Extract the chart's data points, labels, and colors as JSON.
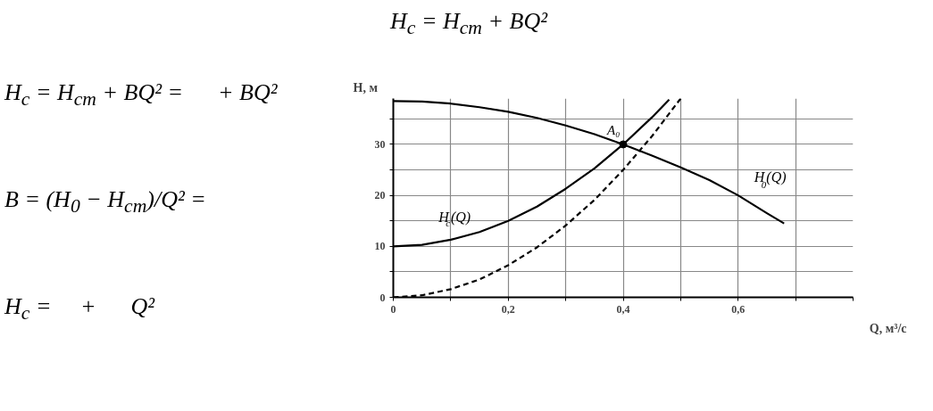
{
  "chart_data": {
    "type": "line",
    "xlabel": "Q, м³/с",
    "ylabel": "H, м",
    "xlim": [
      0,
      0.8
    ],
    "ylim": [
      0,
      39
    ],
    "xticks": [
      0,
      {
        "value": 0.1,
        "label": null
      },
      {
        "value": 0.2,
        "label": "0,2"
      },
      {
        "value": 0.3,
        "label": null
      },
      {
        "value": 0.4,
        "label": "0,4"
      },
      {
        "value": 0.5,
        "label": null
      },
      {
        "value": 0.6,
        "label": "0,6"
      },
      {
        "value": 0.7,
        "label": null
      },
      {
        "value": 0.8,
        "label": null
      }
    ],
    "yticks": [
      0,
      {
        "value": 5,
        "label": null
      },
      10,
      {
        "value": 15,
        "label": null
      },
      20,
      {
        "value": 25,
        "label": null
      },
      30,
      {
        "value": 35,
        "label": null
      }
    ],
    "grid": true,
    "marker": "none",
    "series": [
      {
        "name": "H$_{0}$(Q)",
        "color": "#000000",
        "x": [
          0,
          0.05,
          0.1,
          0.15,
          0.2,
          0.25,
          0.3,
          0.35,
          0.4,
          0.45,
          0.5,
          0.55,
          0.6,
          0.65,
          0.68
        ],
        "values": [
          38.5,
          38.4,
          38.0,
          37.3,
          36.4,
          35.2,
          33.7,
          32.0,
          30.0,
          27.8,
          25.5,
          23.0,
          20.0,
          16.5,
          14.5
        ]
      },
      {
        "name": "H$_{с}$(Q)",
        "color": "#000000",
        "x": [
          0,
          0.05,
          0.1,
          0.15,
          0.2,
          0.25,
          0.3,
          0.35,
          0.4,
          0.45,
          0.48
        ],
        "values": [
          10,
          10.3,
          11.3,
          12.8,
          15,
          17.8,
          21.3,
          25.3,
          30,
          35.3,
          38.8
        ]
      },
      {
        "color": "#000000",
        "line_style": "dashed",
        "x": [
          0,
          0.05,
          0.1,
          0.15,
          0.2,
          0.25,
          0.3,
          0.35,
          0.4,
          0.45,
          0.5
        ],
        "values": [
          0,
          0.4,
          1.6,
          3.5,
          6.3,
          9.8,
          14.1,
          19.1,
          25,
          31.6,
          39
        ]
      },
      {
        "type": "scatter",
        "marker": "circle",
        "color": "#000000",
        "x": [
          0.4
        ],
        "values": [
          30
        ]
      }
    ],
    "annotations": [
      "H$_{с}$ = H$_{ст}$ + BQ²",
      "H$_{с}$ = H$_{ст}$ + BQ² =      + BQ²",
      "B = (H$_{0}$ − H$_{ст}$)/Q² =",
      "H$_{с}$ =     +      Q²",
      {
        "text": "A₀",
        "x": 0.4,
        "y": 30
      }
    ]
  }
}
